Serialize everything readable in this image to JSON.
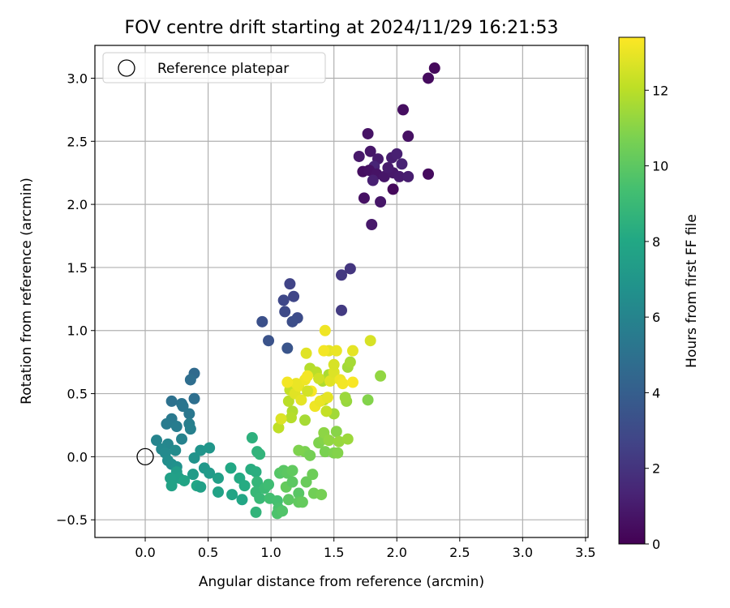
{
  "chart_data": {
    "type": "scatter",
    "title": "FOV centre drift starting at 2024/11/29 16:21:53",
    "xlabel": "Angular distance from reference (arcmin)",
    "ylabel": "Rotation from reference (arcmin)",
    "xlim": [
      -0.4,
      3.52
    ],
    "ylim": [
      -0.64,
      3.26
    ],
    "xticks": [
      0.0,
      0.5,
      1.0,
      1.5,
      2.0,
      2.5,
      3.0,
      3.5
    ],
    "xtick_labels": [
      "0.0",
      "0.5",
      "1.0",
      "1.5",
      "2.0",
      "2.5",
      "3.0",
      "3.5"
    ],
    "yticks": [
      -0.5,
      0.0,
      0.5,
      1.0,
      1.5,
      2.0,
      2.5,
      3.0
    ],
    "ytick_labels": [
      "−0.5",
      "0.0",
      "0.5",
      "1.0",
      "1.5",
      "2.0",
      "2.5",
      "3.0"
    ],
    "grid": true,
    "legend": {
      "placement": "upper-left",
      "entries": [
        "Reference platepar"
      ]
    },
    "reference_point": {
      "x": 0.0,
      "y": 0.0,
      "label": "Reference platepar"
    },
    "colorbar": {
      "label": "Hours from first FF file",
      "colormap": "viridis",
      "range": [
        0,
        13.4
      ],
      "ticks": [
        0,
        2,
        4,
        6,
        8,
        10,
        12
      ],
      "tick_labels": [
        "0",
        "2",
        "4",
        "6",
        "8",
        "10",
        "12"
      ]
    },
    "points": [
      {
        "x": 2.3,
        "y": 3.08,
        "t": 0.3
      },
      {
        "x": 2.25,
        "y": 3.0,
        "t": 0.4
      },
      {
        "x": 2.05,
        "y": 2.75,
        "t": 0.5
      },
      {
        "x": 2.09,
        "y": 2.54,
        "t": 0.6
      },
      {
        "x": 1.77,
        "y": 2.56,
        "t": 0.7
      },
      {
        "x": 1.79,
        "y": 2.42,
        "t": 0.8
      },
      {
        "x": 1.7,
        "y": 2.38,
        "t": 0.9
      },
      {
        "x": 1.85,
        "y": 2.36,
        "t": 1.0
      },
      {
        "x": 1.96,
        "y": 2.37,
        "t": 1.1
      },
      {
        "x": 2.0,
        "y": 2.4,
        "t": 1.2
      },
      {
        "x": 2.04,
        "y": 2.32,
        "t": 1.3
      },
      {
        "x": 1.82,
        "y": 2.3,
        "t": 1.4
      },
      {
        "x": 1.73,
        "y": 2.26,
        "t": 0.5
      },
      {
        "x": 1.78,
        "y": 2.27,
        "t": 0.6
      },
      {
        "x": 1.84,
        "y": 2.24,
        "t": 0.7
      },
      {
        "x": 1.9,
        "y": 2.22,
        "t": 0.8
      },
      {
        "x": 1.97,
        "y": 2.25,
        "t": 0.9
      },
      {
        "x": 2.02,
        "y": 2.22,
        "t": 1.0
      },
      {
        "x": 2.09,
        "y": 2.22,
        "t": 1.1
      },
      {
        "x": 2.25,
        "y": 2.24,
        "t": 0.4
      },
      {
        "x": 1.81,
        "y": 2.19,
        "t": 1.2
      },
      {
        "x": 1.97,
        "y": 2.12,
        "t": 0.3
      },
      {
        "x": 1.74,
        "y": 2.05,
        "t": 0.6
      },
      {
        "x": 1.87,
        "y": 2.02,
        "t": 0.8
      },
      {
        "x": 1.8,
        "y": 1.84,
        "t": 0.9
      },
      {
        "x": 1.93,
        "y": 2.29,
        "t": 1.0
      },
      {
        "x": 1.63,
        "y": 1.49,
        "t": 2.1
      },
      {
        "x": 1.56,
        "y": 1.44,
        "t": 2.2
      },
      {
        "x": 1.56,
        "y": 1.16,
        "t": 2.3
      },
      {
        "x": 1.15,
        "y": 1.37,
        "t": 2.7
      },
      {
        "x": 1.18,
        "y": 1.27,
        "t": 2.8
      },
      {
        "x": 1.1,
        "y": 1.24,
        "t": 2.9
      },
      {
        "x": 1.11,
        "y": 1.15,
        "t": 3.0
      },
      {
        "x": 1.21,
        "y": 1.1,
        "t": 3.1
      },
      {
        "x": 1.17,
        "y": 1.07,
        "t": 3.2
      },
      {
        "x": 0.93,
        "y": 1.07,
        "t": 3.3
      },
      {
        "x": 0.98,
        "y": 0.92,
        "t": 3.4
      },
      {
        "x": 1.13,
        "y": 0.86,
        "t": 3.5
      },
      {
        "x": 0.39,
        "y": 0.66,
        "t": 4.6
      },
      {
        "x": 0.36,
        "y": 0.61,
        "t": 4.8
      },
      {
        "x": 0.39,
        "y": 0.46,
        "t": 4.9
      },
      {
        "x": 0.21,
        "y": 0.44,
        "t": 5.0
      },
      {
        "x": 0.29,
        "y": 0.42,
        "t": 5.1
      },
      {
        "x": 0.3,
        "y": 0.4,
        "t": 5.2
      },
      {
        "x": 0.35,
        "y": 0.34,
        "t": 5.3
      },
      {
        "x": 0.21,
        "y": 0.3,
        "t": 5.4
      },
      {
        "x": 0.17,
        "y": 0.26,
        "t": 5.5
      },
      {
        "x": 0.25,
        "y": 0.24,
        "t": 5.6
      },
      {
        "x": 0.35,
        "y": 0.26,
        "t": 5.7
      },
      {
        "x": 0.36,
        "y": 0.22,
        "t": 5.8
      },
      {
        "x": 0.29,
        "y": 0.14,
        "t": 5.9
      },
      {
        "x": 0.09,
        "y": 0.13,
        "t": 6.0
      },
      {
        "x": 0.18,
        "y": 0.1,
        "t": 6.1
      },
      {
        "x": 0.13,
        "y": 0.06,
        "t": 6.2
      },
      {
        "x": 0.16,
        "y": 0.03,
        "t": 6.3
      },
      {
        "x": 0.24,
        "y": 0.05,
        "t": 6.4
      },
      {
        "x": 0.18,
        "y": -0.03,
        "t": 6.5
      },
      {
        "x": 0.21,
        "y": -0.06,
        "t": 6.6
      },
      {
        "x": 0.25,
        "y": -0.08,
        "t": 6.7
      },
      {
        "x": 0.39,
        "y": -0.01,
        "t": 6.8
      },
      {
        "x": 0.44,
        "y": 0.05,
        "t": 6.9
      },
      {
        "x": 0.51,
        "y": 0.07,
        "t": 7.0
      },
      {
        "x": 0.47,
        "y": -0.09,
        "t": 7.1
      },
      {
        "x": 0.51,
        "y": -0.13,
        "t": 7.2
      },
      {
        "x": 0.38,
        "y": -0.14,
        "t": 7.3
      },
      {
        "x": 0.25,
        "y": -0.12,
        "t": 7.4
      },
      {
        "x": 0.27,
        "y": -0.17,
        "t": 7.5
      },
      {
        "x": 0.2,
        "y": -0.17,
        "t": 7.6
      },
      {
        "x": 0.21,
        "y": -0.23,
        "t": 7.7
      },
      {
        "x": 0.31,
        "y": -0.19,
        "t": 7.8
      },
      {
        "x": 0.41,
        "y": -0.23,
        "t": 7.9
      },
      {
        "x": 0.44,
        "y": -0.24,
        "t": 7.6
      },
      {
        "x": 0.58,
        "y": -0.17,
        "t": 7.5
      },
      {
        "x": 0.58,
        "y": -0.28,
        "t": 7.7
      },
      {
        "x": 0.69,
        "y": -0.3,
        "t": 7.8
      },
      {
        "x": 0.77,
        "y": -0.34,
        "t": 7.9
      },
      {
        "x": 0.68,
        "y": -0.09,
        "t": 8.0
      },
      {
        "x": 0.75,
        "y": -0.17,
        "t": 8.1
      },
      {
        "x": 0.79,
        "y": -0.23,
        "t": 8.2
      },
      {
        "x": 0.84,
        "y": -0.1,
        "t": 8.3
      },
      {
        "x": 0.88,
        "y": -0.12,
        "t": 8.4
      },
      {
        "x": 0.85,
        "y": 0.15,
        "t": 8.5
      },
      {
        "x": 0.89,
        "y": 0.04,
        "t": 8.6
      },
      {
        "x": 0.91,
        "y": 0.02,
        "t": 8.7
      },
      {
        "x": 0.89,
        "y": -0.2,
        "t": 8.8
      },
      {
        "x": 0.88,
        "y": -0.28,
        "t": 8.9
      },
      {
        "x": 0.91,
        "y": -0.33,
        "t": 9.0
      },
      {
        "x": 0.95,
        "y": -0.25,
        "t": 9.1
      },
      {
        "x": 0.98,
        "y": -0.22,
        "t": 9.2
      },
      {
        "x": 0.88,
        "y": -0.44,
        "t": 8.7
      },
      {
        "x": 0.99,
        "y": -0.33,
        "t": 9.3
      },
      {
        "x": 1.05,
        "y": -0.35,
        "t": 9.4
      },
      {
        "x": 1.06,
        "y": -0.41,
        "t": 9.5
      },
      {
        "x": 1.05,
        "y": -0.45,
        "t": 9.6
      },
      {
        "x": 1.09,
        "y": -0.43,
        "t": 9.7
      },
      {
        "x": 1.07,
        "y": -0.13,
        "t": 9.8
      },
      {
        "x": 1.1,
        "y": -0.11,
        "t": 9.9
      },
      {
        "x": 1.13,
        "y": -0.13,
        "t": 10.0
      },
      {
        "x": 1.17,
        "y": -0.11,
        "t": 10.1
      },
      {
        "x": 1.12,
        "y": -0.24,
        "t": 10.2
      },
      {
        "x": 1.17,
        "y": -0.2,
        "t": 10.0
      },
      {
        "x": 1.22,
        "y": -0.29,
        "t": 9.9
      },
      {
        "x": 1.14,
        "y": -0.34,
        "t": 10.0
      },
      {
        "x": 1.22,
        "y": -0.36,
        "t": 10.1
      },
      {
        "x": 1.25,
        "y": -0.36,
        "t": 10.2
      },
      {
        "x": 1.28,
        "y": -0.2,
        "t": 10.3
      },
      {
        "x": 1.33,
        "y": -0.14,
        "t": 10.4
      },
      {
        "x": 1.34,
        "y": -0.29,
        "t": 10.5
      },
      {
        "x": 1.4,
        "y": -0.3,
        "t": 10.6
      },
      {
        "x": 1.27,
        "y": 0.04,
        "t": 10.7
      },
      {
        "x": 1.22,
        "y": 0.05,
        "t": 10.8
      },
      {
        "x": 1.31,
        "y": 0.01,
        "t": 10.6
      },
      {
        "x": 1.43,
        "y": 0.04,
        "t": 10.7
      },
      {
        "x": 1.5,
        "y": 0.03,
        "t": 10.8
      },
      {
        "x": 1.53,
        "y": 0.03,
        "t": 10.9
      },
      {
        "x": 1.38,
        "y": 0.11,
        "t": 10.8
      },
      {
        "x": 1.42,
        "y": 0.14,
        "t": 10.9
      },
      {
        "x": 1.52,
        "y": 0.2,
        "t": 11.0
      },
      {
        "x": 1.42,
        "y": 0.19,
        "t": 11.1
      },
      {
        "x": 1.46,
        "y": 0.13,
        "t": 11.2
      },
      {
        "x": 1.54,
        "y": 0.12,
        "t": 11.3
      },
      {
        "x": 1.61,
        "y": 0.14,
        "t": 11.4
      },
      {
        "x": 1.5,
        "y": 0.34,
        "t": 11.5
      },
      {
        "x": 1.77,
        "y": 0.45,
        "t": 10.9
      },
      {
        "x": 1.87,
        "y": 0.64,
        "t": 11.2
      },
      {
        "x": 1.6,
        "y": 0.44,
        "t": 11.3
      },
      {
        "x": 1.59,
        "y": 0.47,
        "t": 11.4
      },
      {
        "x": 1.61,
        "y": 0.71,
        "t": 11.5
      },
      {
        "x": 1.63,
        "y": 0.75,
        "t": 11.6
      },
      {
        "x": 1.46,
        "y": 0.65,
        "t": 11.7
      },
      {
        "x": 1.41,
        "y": 0.6,
        "t": 11.8
      },
      {
        "x": 1.31,
        "y": 0.7,
        "t": 11.9
      },
      {
        "x": 1.36,
        "y": 0.67,
        "t": 12.0
      },
      {
        "x": 1.42,
        "y": 0.45,
        "t": 12.1
      },
      {
        "x": 1.44,
        "y": 0.36,
        "t": 12.2
      },
      {
        "x": 1.27,
        "y": 0.29,
        "t": 11.6
      },
      {
        "x": 1.17,
        "y": 0.36,
        "t": 11.8
      },
      {
        "x": 1.16,
        "y": 0.31,
        "t": 11.9
      },
      {
        "x": 1.14,
        "y": 0.44,
        "t": 12.0
      },
      {
        "x": 1.15,
        "y": 0.53,
        "t": 12.2
      },
      {
        "x": 1.06,
        "y": 0.23,
        "t": 12.1
      },
      {
        "x": 1.08,
        "y": 0.3,
        "t": 12.7
      },
      {
        "x": 1.19,
        "y": 0.5,
        "t": 12.8
      },
      {
        "x": 1.24,
        "y": 0.45,
        "t": 12.9
      },
      {
        "x": 1.22,
        "y": 0.56,
        "t": 13.0
      },
      {
        "x": 1.27,
        "y": 0.61,
        "t": 13.1
      },
      {
        "x": 1.29,
        "y": 0.64,
        "t": 13.2
      },
      {
        "x": 1.32,
        "y": 0.52,
        "t": 13.3
      },
      {
        "x": 1.35,
        "y": 0.4,
        "t": 13.1
      },
      {
        "x": 1.39,
        "y": 0.44,
        "t": 13.0
      },
      {
        "x": 1.45,
        "y": 0.47,
        "t": 12.9
      },
      {
        "x": 1.47,
        "y": 0.6,
        "t": 12.8
      },
      {
        "x": 1.5,
        "y": 0.67,
        "t": 12.7
      },
      {
        "x": 1.5,
        "y": 0.73,
        "t": 12.6
      },
      {
        "x": 1.46,
        "y": 0.84,
        "t": 12.9
      },
      {
        "x": 1.52,
        "y": 0.84,
        "t": 13.0
      },
      {
        "x": 1.43,
        "y": 1.0,
        "t": 13.1
      },
      {
        "x": 1.28,
        "y": 0.82,
        "t": 12.8
      },
      {
        "x": 1.42,
        "y": 0.84,
        "t": 13.2
      },
      {
        "x": 1.55,
        "y": 0.61,
        "t": 13.1
      },
      {
        "x": 1.57,
        "y": 0.58,
        "t": 13.2
      },
      {
        "x": 1.65,
        "y": 0.59,
        "t": 13.3
      },
      {
        "x": 1.65,
        "y": 0.84,
        "t": 12.9
      },
      {
        "x": 1.79,
        "y": 0.92,
        "t": 12.6
      },
      {
        "x": 1.2,
        "y": 0.58,
        "t": 13.0
      },
      {
        "x": 1.13,
        "y": 0.59,
        "t": 13.2
      },
      {
        "x": 1.29,
        "y": 0.52,
        "t": 12.5
      },
      {
        "x": 1.38,
        "y": 0.62,
        "t": 12.4
      }
    ]
  }
}
